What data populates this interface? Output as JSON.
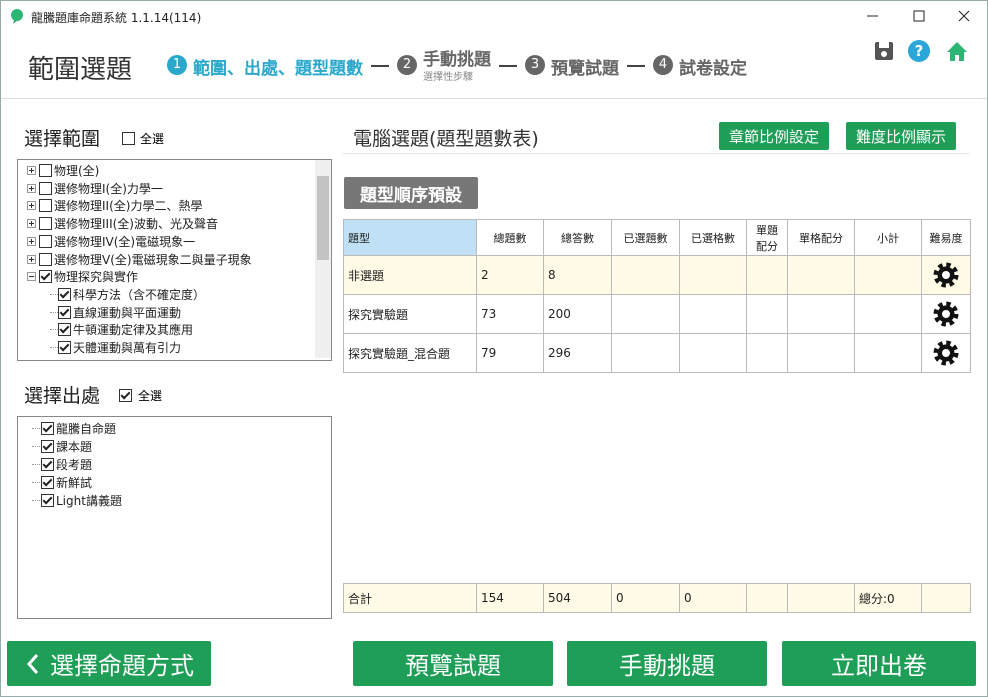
{
  "window": {
    "title": "龍騰題庫命題系統 1.1.14(114)"
  },
  "header": {
    "title": "範圍選題",
    "steps": [
      {
        "number": "1",
        "label": "範圍、出處、題型題數",
        "active": true
      },
      {
        "number": "2",
        "label": "手動挑題",
        "sublabel": "選擇性步驟",
        "active": false
      },
      {
        "number": "3",
        "label": "預覽試題",
        "active": false
      },
      {
        "number": "4",
        "label": "試卷設定",
        "active": false
      }
    ]
  },
  "scope": {
    "title": "選擇範圍",
    "select_all": "全選",
    "select_all_checked": false,
    "items": [
      {
        "label": "物理(全)",
        "checked": false,
        "level": 0,
        "expanded": false
      },
      {
        "label": "選修物理I(全)力學一",
        "checked": false,
        "level": 0,
        "expanded": false
      },
      {
        "label": "選修物理II(全)力學二、熱學",
        "checked": false,
        "level": 0,
        "expanded": false
      },
      {
        "label": "選修物理III(全)波動、光及聲音",
        "checked": false,
        "level": 0,
        "expanded": false
      },
      {
        "label": "選修物理IV(全)電磁現象一",
        "checked": false,
        "level": 0,
        "expanded": false
      },
      {
        "label": "選修物理V(全)電磁現象二與量子現象",
        "checked": false,
        "level": 0,
        "expanded": false
      },
      {
        "label": "物理探究與實作",
        "checked": true,
        "level": 0,
        "expanded": true
      },
      {
        "label": "科學方法（含不確定度）",
        "checked": true,
        "level": 1
      },
      {
        "label": "直線運動與平面運動",
        "checked": true,
        "level": 1
      },
      {
        "label": "牛頓運動定律及其應用",
        "checked": true,
        "level": 1
      },
      {
        "label": "天體運動與萬有引力",
        "checked": true,
        "level": 1
      }
    ]
  },
  "source": {
    "title": "選擇出處",
    "select_all": "全選",
    "select_all_checked": true,
    "items": [
      {
        "label": "龍騰自命題",
        "checked": true
      },
      {
        "label": "課本題",
        "checked": true
      },
      {
        "label": "段考題",
        "checked": true
      },
      {
        "label": "新鮮試",
        "checked": true
      },
      {
        "label": "Light講義題",
        "checked": true
      }
    ]
  },
  "selection": {
    "title": "電腦選題(題型題數表)",
    "buttons": [
      "章節比例設定",
      "難度比例顯示"
    ],
    "order_button": "題型順序預設",
    "table": {
      "headers": [
        "題型",
        "總題數",
        "總答數",
        "已選題數",
        "已選格數",
        "單題配分",
        "單格配分",
        "小計",
        "難易度"
      ],
      "rows": [
        [
          "非選題",
          2,
          8,
          null,
          null,
          null,
          null,
          null,
          null
        ],
        [
          "探究實驗題",
          73,
          200,
          null,
          null,
          null,
          null,
          null,
          null
        ],
        [
          "探究實驗題_混合題",
          79,
          296,
          null,
          null,
          null,
          null,
          null,
          null
        ]
      ],
      "total": [
        "合計",
        154,
        504,
        0,
        0,
        null,
        null,
        "總分:0",
        null
      ]
    }
  },
  "footer": {
    "buttons": [
      "選擇命題方式",
      "預覽試題",
      "手動挑題",
      "立即出卷"
    ]
  }
}
